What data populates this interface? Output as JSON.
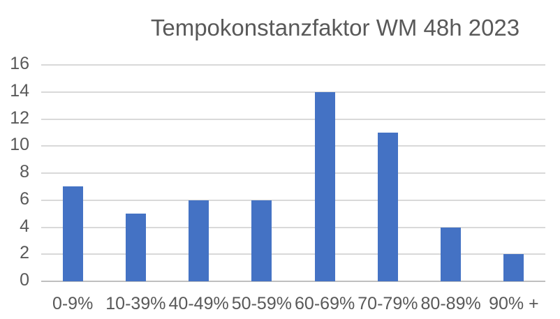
{
  "chart_data": {
    "type": "bar",
    "title": "Tempokonstanzfaktor WM 48h 2023",
    "categories": [
      "0-9%",
      "10-39%",
      "40-49%",
      "50-59%",
      "60-69%",
      "70-79%",
      "80-89%",
      "90% +"
    ],
    "values": [
      7,
      5,
      6,
      6,
      14,
      11,
      4,
      2
    ],
    "xlabel": "",
    "ylabel": "",
    "ylim": [
      0,
      16
    ],
    "yticks": [
      0,
      2,
      4,
      6,
      8,
      10,
      12,
      14,
      16
    ],
    "grid": true,
    "legend_position": "none",
    "bar_color": "#4472C4",
    "gridline_color": "#D9D9D9",
    "axis_line_color": "#BFBFBF",
    "text_color": "#595959",
    "background_color": "#FFFFFF"
  }
}
